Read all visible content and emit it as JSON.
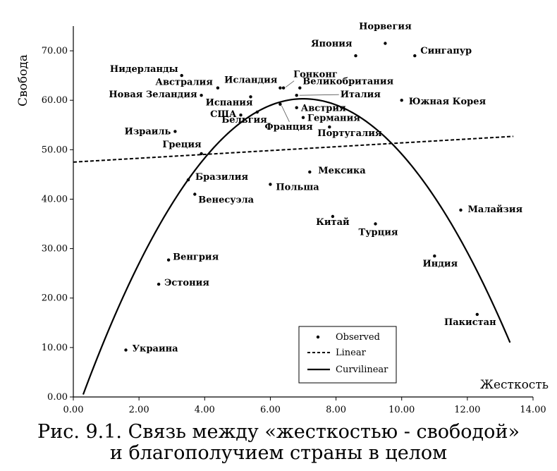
{
  "chart_data": {
    "type": "scatter",
    "xlabel": "Жесткость",
    "ylabel": "Свобода",
    "xlim": [
      0,
      14
    ],
    "ylim": [
      0,
      75
    ],
    "xticks": [
      "0.00",
      "2.00",
      "4.00",
      "6.00",
      "8.00",
      "10.00",
      "12.00",
      "14.00"
    ],
    "yticks": [
      "0.00",
      "10.00",
      "20.00",
      "30.00",
      "40.00",
      "50.00",
      "60.00",
      "70.00"
    ],
    "points": [
      {
        "name": "Норвегия",
        "x": 9.5,
        "y": 71.5
      },
      {
        "name": "Япония",
        "x": 8.6,
        "y": 69.0
      },
      {
        "name": "Сингапур",
        "x": 10.4,
        "y": 69.0
      },
      {
        "name": "Нидерланды",
        "x": 3.3,
        "y": 65.0
      },
      {
        "name": "Австралия",
        "x": 4.4,
        "y": 62.5
      },
      {
        "name": "Исландия",
        "x": 6.3,
        "y": 62.5
      },
      {
        "name": "Гонконг",
        "x": 6.4,
        "y": 62.5
      },
      {
        "name": "Великобритания",
        "x": 6.9,
        "y": 62.5
      },
      {
        "name": "Новая Зеландия",
        "x": 3.9,
        "y": 61.0
      },
      {
        "name": "Испания",
        "x": 5.4,
        "y": 60.7
      },
      {
        "name": "Италия",
        "x": 6.8,
        "y": 61.0
      },
      {
        "name": "Южная Корея",
        "x": 10.0,
        "y": 60.0
      },
      {
        "name": "Австрия",
        "x": 6.8,
        "y": 58.5
      },
      {
        "name": "Франция",
        "x": 6.3,
        "y": 59.2
      },
      {
        "name": "Бельгия",
        "x": 5.6,
        "y": 57.6
      },
      {
        "name": "США",
        "x": 5.1,
        "y": 57.0
      },
      {
        "name": "Германия",
        "x": 7.0,
        "y": 56.5
      },
      {
        "name": "Португалия",
        "x": 7.8,
        "y": 54.6
      },
      {
        "name": "Израиль",
        "x": 3.1,
        "y": 53.7
      },
      {
        "name": "Греция",
        "x": 3.9,
        "y": 49.2
      },
      {
        "name": "Мексика",
        "x": 7.2,
        "y": 45.5
      },
      {
        "name": "Бразилия",
        "x": 3.5,
        "y": 43.9
      },
      {
        "name": "Польша",
        "x": 6.0,
        "y": 43.0
      },
      {
        "name": "Венесуэла",
        "x": 3.7,
        "y": 41.0
      },
      {
        "name": "Малайзия",
        "x": 11.8,
        "y": 37.8
      },
      {
        "name": "Китай",
        "x": 7.9,
        "y": 36.5
      },
      {
        "name": "Турция",
        "x": 9.2,
        "y": 35.0
      },
      {
        "name": "Индия",
        "x": 11.0,
        "y": 28.5
      },
      {
        "name": "Венгрия",
        "x": 2.9,
        "y": 27.7
      },
      {
        "name": "Эстония",
        "x": 2.6,
        "y": 22.8
      },
      {
        "name": "Пакистан",
        "x": 12.3,
        "y": 16.7
      },
      {
        "name": "Украина",
        "x": 1.6,
        "y": 9.5
      }
    ],
    "linear_fit": {
      "name": "Linear",
      "x": [
        0,
        13.4
      ],
      "y": [
        47.5,
        52.7
      ]
    },
    "curvilinear_fit": {
      "name": "Curvilinear",
      "x": [
        0.3,
        13.3
      ],
      "y": [
        0.5,
        11.0
      ],
      "peak": [
        7.0,
        60.3
      ]
    },
    "legend": [
      "Observed",
      "Linear",
      "Curvilinear"
    ],
    "legend_position": "bottom-right"
  },
  "caption": {
    "line1": "Рис. 9.1. Связь между «жесткостью - свободой»",
    "line2": "и благополучием страны в целом"
  }
}
